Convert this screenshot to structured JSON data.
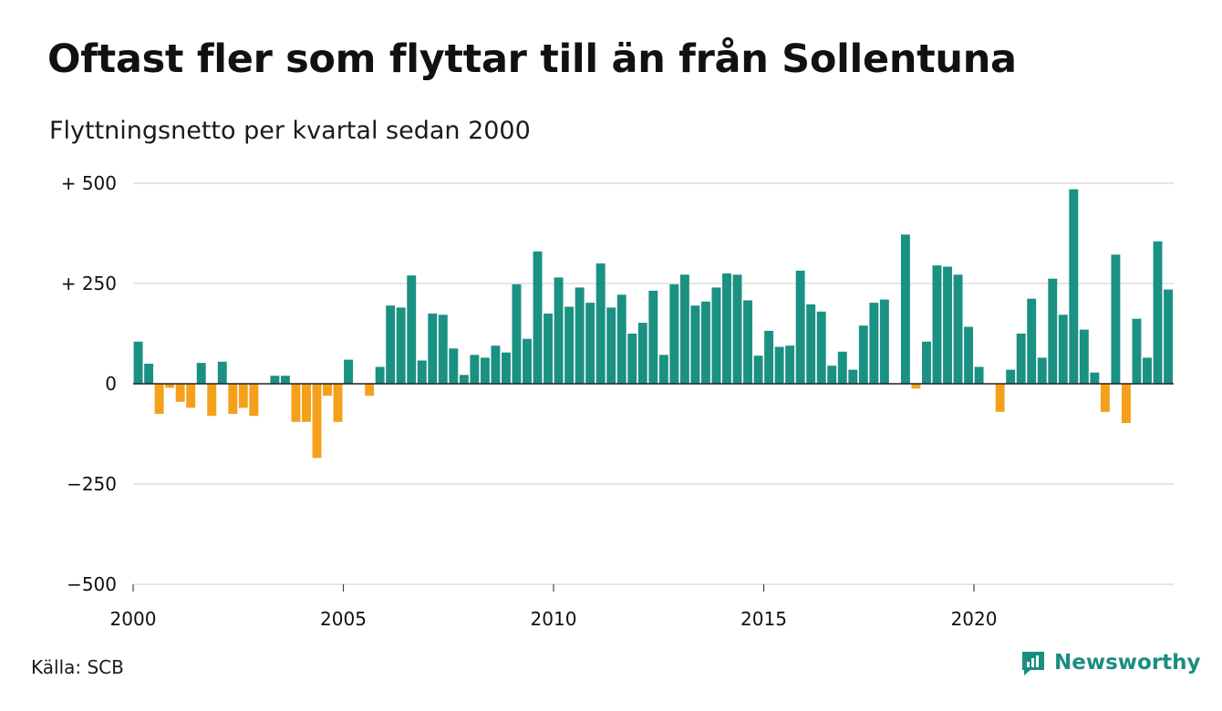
{
  "title": "Oftast fler som flyttar till än från Sollentuna",
  "subtitle": "Flyttningsnetto per kvartal sedan 2000",
  "source": "Källa: SCB",
  "brand": "Newsworthy",
  "colors": {
    "positive": "#1a9182",
    "negative": "#f5a01a",
    "grid": "#dddddd",
    "axis": "#222222",
    "brand": "#1a8e80"
  },
  "chart_data": {
    "type": "bar",
    "ylim": [
      -500,
      500
    ],
    "yticks": [
      500,
      250,
      0,
      -250,
      -500
    ],
    "ytick_labels": [
      "+ 500",
      "+ 250",
      "0",
      "−250",
      "−500"
    ],
    "xticks": [
      2000,
      2005,
      2010,
      2015,
      2020
    ],
    "xtick_labels": [
      "2000",
      "2005",
      "2010",
      "2015",
      "2020"
    ],
    "start": "2000 Q1",
    "grid": true,
    "values": [
      105,
      50,
      -75,
      -10,
      -45,
      -60,
      52,
      -80,
      55,
      -75,
      -60,
      -80,
      0,
      20,
      20,
      -95,
      -95,
      -185,
      -30,
      -95,
      60,
      0,
      -30,
      42,
      195,
      190,
      270,
      58,
      175,
      172,
      88,
      22,
      72,
      65,
      95,
      78,
      248,
      112,
      330,
      175,
      265,
      192,
      240,
      202,
      300,
      190,
      222,
      125,
      152,
      232,
      72,
      248,
      272,
      195,
      205,
      240,
      275,
      272,
      208,
      70,
      132,
      92,
      95,
      282,
      198,
      180,
      45,
      80,
      35,
      145,
      202,
      210,
      0,
      372,
      -12,
      105,
      295,
      292,
      272,
      142,
      42,
      0,
      -70,
      35,
      125,
      212,
      65,
      262,
      172,
      485,
      135,
      28,
      -70,
      322,
      -98,
      162,
      65,
      355,
      235
    ]
  }
}
